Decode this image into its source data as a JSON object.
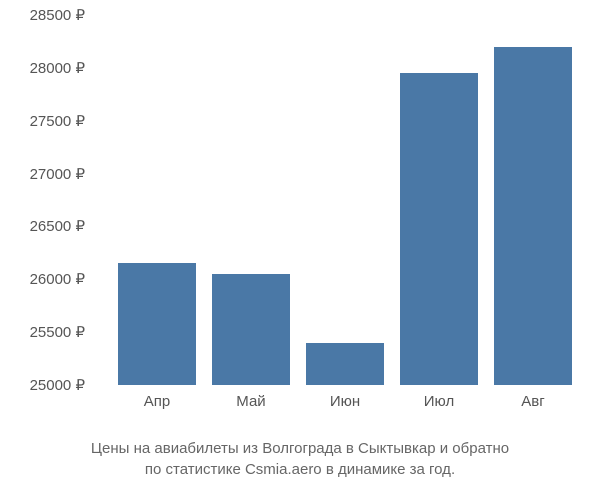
{
  "chart": {
    "type": "bar",
    "background_color": "#ffffff",
    "bar_color": "#4a78a6",
    "text_color": "#555555",
    "caption_color": "#666666",
    "label_fontsize": 15,
    "caption_fontsize": 15,
    "currency_suffix": " ₽",
    "ylim": [
      25000,
      28500
    ],
    "ytick_step": 500,
    "yticks": [
      25000,
      25500,
      26000,
      26500,
      27000,
      27500,
      28000,
      28500
    ],
    "categories": [
      "Апр",
      "Май",
      "Июн",
      "Июл",
      "Авг"
    ],
    "values": [
      26150,
      26050,
      25400,
      27950,
      28200
    ],
    "bar_width": 0.8,
    "caption_line1": "Цены на авиабилеты из Волгограда в Сыктывкар и обратно",
    "caption_line2": "по статистике Csmia.aero в динамике за год."
  }
}
